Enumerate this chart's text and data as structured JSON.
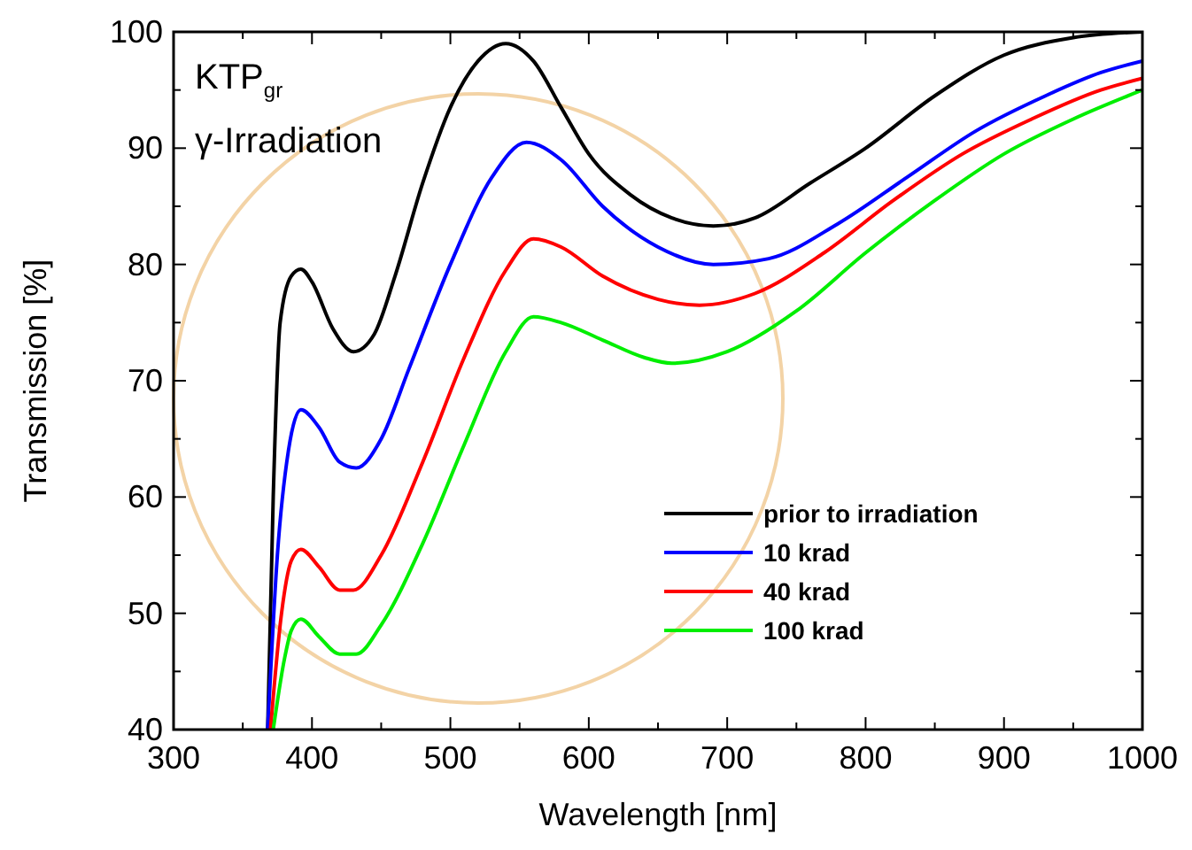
{
  "chart_data": {
    "type": "line",
    "xlabel": "Wavelength [nm]",
    "ylabel": "Transmission [%]",
    "annotations": [
      "KTP$_{gr}$",
      "γ-Irradiation"
    ],
    "xlim": [
      300,
      1000
    ],
    "ylim": [
      40,
      100
    ],
    "xticks": [
      300,
      {
        "value": 350,
        "label": null
      },
      400,
      {
        "value": 450,
        "label": null
      },
      500,
      {
        "value": 550,
        "label": null
      },
      600,
      {
        "value": 650,
        "label": null
      },
      700,
      {
        "value": 750,
        "label": null
      },
      800,
      {
        "value": 850,
        "label": null
      },
      900,
      {
        "value": 950,
        "label": null
      },
      1000
    ],
    "yticks": [
      40,
      {
        "value": 45,
        "label": null
      },
      50,
      {
        "value": 55,
        "label": null
      },
      60,
      {
        "value": 65,
        "label": null
      },
      70,
      {
        "value": 75,
        "label": null
      },
      80,
      {
        "value": 85,
        "label": null
      },
      90,
      {
        "value": 95,
        "label": null
      },
      100
    ],
    "grid": false,
    "legend": "bottom right",
    "marker": "none",
    "line_style": "solid",
    "series": [
      {
        "name": "prior to irradiation",
        "color": "#000000",
        "x": [
          368,
          372,
          377,
          385,
          392,
          400,
          415,
          430,
          445,
          460,
          480,
          500,
          520,
          540,
          560,
          580,
          600,
          630,
          660,
          690,
          720,
          760,
          800,
          850,
          900,
          950,
          1000
        ],
        "values": [
          40,
          60,
          75,
          79,
          79.6,
          78.5,
          74.5,
          72.5,
          74,
          79,
          87,
          93.5,
          97.5,
          99,
          97.5,
          93.5,
          89.5,
          86,
          84,
          83.3,
          84,
          87,
          90,
          94.5,
          98,
          99.5,
          100
        ]
      },
      {
        "name": "10 krad",
        "color": "#0000ff",
        "x": [
          368,
          375,
          383,
          392,
          405,
          420,
          432,
          450,
          470,
          500,
          530,
          555,
          580,
          610,
          650,
          690,
          730,
          780,
          830,
          880,
          930,
          970,
          1000
        ],
        "values": [
          40,
          55,
          64,
          67.5,
          66,
          63,
          62.5,
          65,
          71,
          80,
          87.5,
          90.5,
          89,
          85,
          81.5,
          80,
          80.5,
          83.5,
          87.5,
          91.5,
          94.5,
          96.5,
          97.5
        ]
      },
      {
        "name": "40 krad",
        "color": "#ff0000",
        "x": [
          370,
          378,
          385,
          392,
          405,
          420,
          430,
          450,
          480,
          510,
          540,
          560,
          580,
          610,
          650,
          680,
          720,
          770,
          820,
          870,
          920,
          970,
          1000
        ],
        "values": [
          40,
          50,
          54.5,
          55.5,
          54,
          52,
          52,
          55,
          63,
          72,
          79.5,
          82.2,
          81.5,
          79,
          77,
          76.5,
          77.5,
          81,
          85.5,
          89.5,
          92.5,
          95,
          96
        ]
      },
      {
        "name": "100 krad",
        "color": "#00ee00",
        "x": [
          372,
          380,
          385,
          392,
          405,
          420,
          432,
          450,
          480,
          510,
          540,
          560,
          580,
          610,
          640,
          660,
          700,
          750,
          800,
          850,
          900,
          950,
          1000
        ],
        "values": [
          40,
          46,
          48.5,
          49.5,
          48,
          46.5,
          46.5,
          49,
          56,
          64.5,
          72.5,
          75.5,
          75,
          73.5,
          72,
          71.5,
          72.5,
          76,
          81,
          85.5,
          89.5,
          92.5,
          95
        ]
      }
    ]
  }
}
